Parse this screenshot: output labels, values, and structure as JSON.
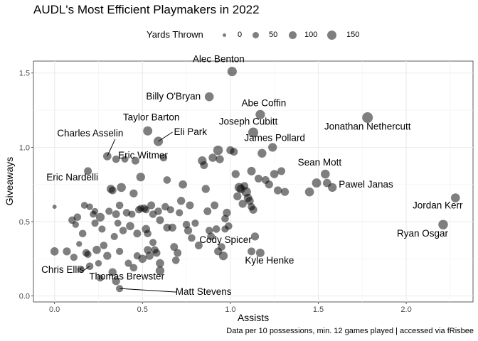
{
  "chart_data": {
    "type": "scatter",
    "title": "AUDL's Most Efficient Playmakers in 2022",
    "xlabel": "Assists",
    "ylabel": "Giveaways",
    "caption": "Data per 10 possessions, min. 12 games played | accessed via fRisbee",
    "xlim": [
      -0.12,
      2.38
    ],
    "ylim": [
      -0.04,
      1.58
    ],
    "xticks": [
      0.0,
      0.5,
      1.0,
      1.5,
      2.0
    ],
    "xtick_labels": [
      "0.0",
      "0.5",
      "1.0",
      "1.5",
      "2.0"
    ],
    "yticks": [
      0.0,
      0.5,
      1.0,
      1.5
    ],
    "ytick_labels": [
      "0.0",
      "0.5",
      "1.0",
      "1.5"
    ],
    "grid": true,
    "legend": {
      "title": "Yards Thrown",
      "placement": "top",
      "entries": [
        {
          "label": "0",
          "value": 0
        },
        {
          "label": "50",
          "value": 50
        },
        {
          "label": "100",
          "value": 100
        },
        {
          "label": "150",
          "value": 150
        }
      ]
    },
    "labeled_points": [
      {
        "name": "Alec Benton",
        "x": 1.01,
        "y": 1.51,
        "size": 85
      },
      {
        "name": "Billy O'Bryan",
        "x": 0.88,
        "y": 1.34,
        "size": 75
      },
      {
        "name": "Abe Coffin",
        "x": 1.17,
        "y": 1.22,
        "size": 85
      },
      {
        "name": "Jonathan Nethercutt",
        "x": 1.78,
        "y": 1.2,
        "size": 120
      },
      {
        "name": "Taylor Barton",
        "x": 0.53,
        "y": 1.11,
        "size": 80
      },
      {
        "name": "Joseph Cubitt",
        "x": 1.13,
        "y": 1.1,
        "size": 100
      },
      {
        "name": "Eli Park",
        "x": 0.59,
        "y": 1.04,
        "size": 85
      },
      {
        "name": "James Pollard",
        "x": 1.24,
        "y": 1.0,
        "size": 70
      },
      {
        "name": "Charles Asselin",
        "x": 0.3,
        "y": 0.94,
        "size": 60
      },
      {
        "name": "Eric Witmer",
        "x": 0.35,
        "y": 0.92,
        "size": 45
      },
      {
        "name": "Sean Mott",
        "x": 1.54,
        "y": 0.82,
        "size": 75
      },
      {
        "name": "Eric Nardelli",
        "x": 0.19,
        "y": 0.84,
        "size": 50
      },
      {
        "name": "Pawel Janas",
        "x": 1.58,
        "y": 0.73,
        "size": 70
      },
      {
        "name": "Jordan Kerr",
        "x": 2.28,
        "y": 0.66,
        "size": 75
      },
      {
        "name": "Ryan Osgar",
        "x": 2.21,
        "y": 0.48,
        "size": 90
      },
      {
        "name": "Cody Spicer",
        "x": 0.96,
        "y": 0.27,
        "size": 70
      },
      {
        "name": "Kyle Henke",
        "x": 1.17,
        "y": 0.29,
        "size": 65
      },
      {
        "name": "Chris Ellis",
        "x": 0.2,
        "y": 0.2,
        "size": 45
      },
      {
        "name": "Thomas Brewster",
        "x": 0.35,
        "y": 0.1,
        "size": 55
      },
      {
        "name": "Matt Stevens",
        "x": 0.37,
        "y": 0.05,
        "size": 40
      }
    ],
    "points": [
      {
        "x": 0.0,
        "y": 0.6,
        "size": 5
      },
      {
        "x": 0.0,
        "y": 0.3,
        "size": 60
      },
      {
        "x": 0.07,
        "y": 0.3,
        "size": 55
      },
      {
        "x": 0.1,
        "y": 0.51,
        "size": 45
      },
      {
        "x": 0.11,
        "y": 0.26,
        "size": 40
      },
      {
        "x": 0.12,
        "y": 0.48,
        "size": 30
      },
      {
        "x": 0.13,
        "y": 0.53,
        "size": 45
      },
      {
        "x": 0.14,
        "y": 0.35,
        "size": 20
      },
      {
        "x": 0.16,
        "y": 0.42,
        "size": 45
      },
      {
        "x": 0.17,
        "y": 0.61,
        "size": 35
      },
      {
        "x": 0.18,
        "y": 0.29,
        "size": 45
      },
      {
        "x": 0.19,
        "y": 0.28,
        "size": 40
      },
      {
        "x": 0.22,
        "y": 0.55,
        "size": 35
      },
      {
        "x": 0.23,
        "y": 0.57,
        "size": 30
      },
      {
        "x": 0.23,
        "y": 0.49,
        "size": 40
      },
      {
        "x": 0.24,
        "y": 0.31,
        "size": 60
      },
      {
        "x": 0.25,
        "y": 0.22,
        "size": 30
      },
      {
        "x": 0.26,
        "y": 0.12,
        "size": 35
      },
      {
        "x": 0.27,
        "y": 0.45,
        "size": 40
      },
      {
        "x": 0.26,
        "y": 0.53,
        "size": 70
      },
      {
        "x": 0.28,
        "y": 0.34,
        "size": 45
      },
      {
        "x": 0.3,
        "y": 0.27,
        "size": 55
      },
      {
        "x": 0.31,
        "y": 0.57,
        "size": 40
      },
      {
        "x": 0.32,
        "y": 0.72,
        "size": 60
      },
      {
        "x": 0.33,
        "y": 0.71,
        "size": 50
      },
      {
        "x": 0.34,
        "y": 0.4,
        "size": 40
      },
      {
        "x": 0.35,
        "y": 0.55,
        "size": 50
      },
      {
        "x": 0.36,
        "y": 0.49,
        "size": 35
      },
      {
        "x": 0.37,
        "y": 0.61,
        "size": 45
      },
      {
        "x": 0.37,
        "y": 0.3,
        "size": 40
      },
      {
        "x": 0.38,
        "y": 0.73,
        "size": 75
      },
      {
        "x": 0.39,
        "y": 0.44,
        "size": 45
      },
      {
        "x": 0.4,
        "y": 0.92,
        "size": 35
      },
      {
        "x": 0.41,
        "y": 0.56,
        "size": 45
      },
      {
        "x": 0.42,
        "y": 0.22,
        "size": 40
      },
      {
        "x": 0.43,
        "y": 0.47,
        "size": 60
      },
      {
        "x": 0.44,
        "y": 0.55,
        "size": 40
      },
      {
        "x": 0.45,
        "y": 0.69,
        "size": 55
      },
      {
        "x": 0.45,
        "y": 0.19,
        "size": 45
      },
      {
        "x": 0.46,
        "y": 0.91,
        "size": 50
      },
      {
        "x": 0.47,
        "y": 0.42,
        "size": 50
      },
      {
        "x": 0.48,
        "y": 0.58,
        "size": 45
      },
      {
        "x": 0.49,
        "y": 0.8,
        "size": 70
      },
      {
        "x": 0.49,
        "y": 0.59,
        "size": 35
      },
      {
        "x": 0.5,
        "y": 0.25,
        "size": 60
      },
      {
        "x": 0.51,
        "y": 0.59,
        "size": 50
      },
      {
        "x": 0.52,
        "y": 0.58,
        "size": 40
      },
      {
        "x": 0.52,
        "y": 0.45,
        "size": 60
      },
      {
        "x": 0.53,
        "y": 0.42,
        "size": 45
      },
      {
        "x": 0.53,
        "y": 0.31,
        "size": 50
      },
      {
        "x": 0.54,
        "y": 0.27,
        "size": 55
      },
      {
        "x": 0.55,
        "y": 0.61,
        "size": 50
      },
      {
        "x": 0.56,
        "y": 0.55,
        "size": 45
      },
      {
        "x": 0.56,
        "y": 0.36,
        "size": 40
      },
      {
        "x": 0.57,
        "y": 0.31,
        "size": 45
      },
      {
        "x": 0.58,
        "y": 0.29,
        "size": 50
      },
      {
        "x": 0.59,
        "y": 0.57,
        "size": 45
      },
      {
        "x": 0.6,
        "y": 0.51,
        "size": 50
      },
      {
        "x": 0.6,
        "y": 0.22,
        "size": 60
      },
      {
        "x": 0.6,
        "y": 0.17,
        "size": 70
      },
      {
        "x": 0.62,
        "y": 0.93,
        "size": 45
      },
      {
        "x": 0.63,
        "y": 0.6,
        "size": 45
      },
      {
        "x": 0.64,
        "y": 0.46,
        "size": 50
      },
      {
        "x": 0.64,
        "y": 0.78,
        "size": 45
      },
      {
        "x": 0.66,
        "y": 0.58,
        "size": 40
      },
      {
        "x": 0.67,
        "y": 0.46,
        "size": 55
      },
      {
        "x": 0.68,
        "y": 0.33,
        "size": 50
      },
      {
        "x": 0.69,
        "y": 0.24,
        "size": 45
      },
      {
        "x": 0.7,
        "y": 0.29,
        "size": 50
      },
      {
        "x": 0.71,
        "y": 0.56,
        "size": 40
      },
      {
        "x": 0.72,
        "y": 0.64,
        "size": 55
      },
      {
        "x": 0.73,
        "y": 0.75,
        "size": 60
      },
      {
        "x": 0.75,
        "y": 0.48,
        "size": 45
      },
      {
        "x": 0.76,
        "y": 0.44,
        "size": 55
      },
      {
        "x": 0.77,
        "y": 0.61,
        "size": 50
      },
      {
        "x": 0.78,
        "y": 0.39,
        "size": 45
      },
      {
        "x": 0.8,
        "y": 0.49,
        "size": 40
      },
      {
        "x": 0.82,
        "y": 0.34,
        "size": 50
      },
      {
        "x": 0.84,
        "y": 0.91,
        "size": 70
      },
      {
        "x": 0.85,
        "y": 0.88,
        "size": 50
      },
      {
        "x": 0.86,
        "y": 0.72,
        "size": 55
      },
      {
        "x": 0.87,
        "y": 0.57,
        "size": 50
      },
      {
        "x": 0.88,
        "y": 0.44,
        "size": 45
      },
      {
        "x": 0.89,
        "y": 0.4,
        "size": 50
      },
      {
        "x": 0.9,
        "y": 0.93,
        "size": 60
      },
      {
        "x": 0.91,
        "y": 0.61,
        "size": 50
      },
      {
        "x": 0.92,
        "y": 0.45,
        "size": 45
      },
      {
        "x": 0.93,
        "y": 0.98,
        "size": 90
      },
      {
        "x": 0.94,
        "y": 0.92,
        "size": 55
      },
      {
        "x": 0.95,
        "y": 0.33,
        "size": 45
      },
      {
        "x": 0.97,
        "y": 0.52,
        "size": 45
      },
      {
        "x": 0.97,
        "y": 0.45,
        "size": 40
      },
      {
        "x": 0.98,
        "y": 0.56,
        "size": 55
      },
      {
        "x": 0.99,
        "y": 0.47,
        "size": 45
      },
      {
        "x": 1.0,
        "y": 0.98,
        "size": 55
      },
      {
        "x": 1.02,
        "y": 0.97,
        "size": 50
      },
      {
        "x": 1.03,
        "y": 0.82,
        "size": 55
      },
      {
        "x": 1.04,
        "y": 0.67,
        "size": 55
      },
      {
        "x": 1.05,
        "y": 0.73,
        "size": 80
      },
      {
        "x": 1.06,
        "y": 0.72,
        "size": 70
      },
      {
        "x": 1.07,
        "y": 0.62,
        "size": 55
      },
      {
        "x": 1.08,
        "y": 0.74,
        "size": 50
      },
      {
        "x": 1.09,
        "y": 0.7,
        "size": 90
      },
      {
        "x": 1.1,
        "y": 0.66,
        "size": 60
      },
      {
        "x": 1.11,
        "y": 0.64,
        "size": 55
      },
      {
        "x": 1.12,
        "y": 0.84,
        "size": 65
      },
      {
        "x": 1.12,
        "y": 0.6,
        "size": 45
      },
      {
        "x": 1.13,
        "y": 0.58,
        "size": 55
      },
      {
        "x": 1.14,
        "y": 0.4,
        "size": 55
      },
      {
        "x": 1.16,
        "y": 0.79,
        "size": 50
      },
      {
        "x": 1.18,
        "y": 0.96,
        "size": 70
      },
      {
        "x": 1.2,
        "y": 0.78,
        "size": 50
      },
      {
        "x": 1.22,
        "y": 0.75,
        "size": 55
      },
      {
        "x": 1.25,
        "y": 0.82,
        "size": 60
      },
      {
        "x": 1.27,
        "y": 0.71,
        "size": 55
      },
      {
        "x": 1.29,
        "y": 0.84,
        "size": 50
      },
      {
        "x": 1.31,
        "y": 0.7,
        "size": 55
      },
      {
        "x": 1.45,
        "y": 0.7,
        "size": 75
      },
      {
        "x": 1.49,
        "y": 0.76,
        "size": 80
      },
      {
        "x": 1.55,
        "y": 0.76,
        "size": 60
      },
      {
        "x": 1.12,
        "y": 0.3,
        "size": 50
      },
      {
        "x": 0.93,
        "y": 0.3,
        "size": 50
      },
      {
        "x": 0.33,
        "y": 0.16,
        "size": 55
      },
      {
        "x": 0.47,
        "y": 0.27,
        "size": 40
      },
      {
        "x": 0.2,
        "y": 0.6,
        "size": 30
      },
      {
        "x": 0.15,
        "y": 0.18,
        "size": 40
      }
    ]
  }
}
